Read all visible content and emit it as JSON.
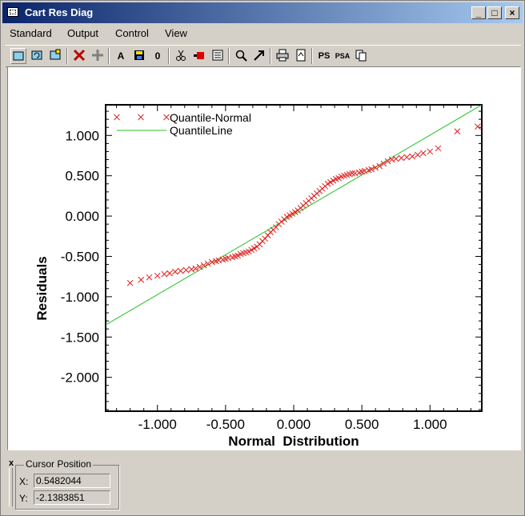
{
  "window": {
    "title": "Cart Res Diag",
    "minimize": "_",
    "maximize": "□",
    "close": "×"
  },
  "menu": [
    "Standard",
    "Output",
    "Control",
    "View"
  ],
  "toolbar": {
    "text_a": "A",
    "zero": "0",
    "ps": "PS",
    "psa": "PSA"
  },
  "chart_data": {
    "type": "scatter",
    "xlabel": "Normal  Distribution",
    "ylabel": "Residuals",
    "xlim": [
      -1.38,
      1.38
    ],
    "ylim": [
      -2.42,
      1.38
    ],
    "xticks": [
      "-1.000",
      "-0.500",
      "0.000",
      "0.500",
      "1.000"
    ],
    "xtick_values": [
      -1,
      -0.5,
      0,
      0.5,
      1
    ],
    "yticks": [
      "1.000",
      "0.500",
      "0.000",
      "-0.500",
      "-1.000",
      "-1.500",
      "-2.000"
    ],
    "ytick_values": [
      1,
      0.5,
      0,
      -0.5,
      -1,
      -1.5,
      -2
    ],
    "legend_position": "top-left",
    "series": [
      {
        "name": "Quantile-Normal",
        "marker": "x",
        "color": "#e02020",
        "points": [
          [
            -1.2,
            -0.83
          ],
          [
            -1.12,
            -0.79
          ],
          [
            -1.06,
            -0.76
          ],
          [
            -1.0,
            -0.74
          ],
          [
            -0.95,
            -0.72
          ],
          [
            -0.91,
            -0.71
          ],
          [
            -0.87,
            -0.69
          ],
          [
            -0.83,
            -0.68
          ],
          [
            -0.79,
            -0.67
          ],
          [
            -0.75,
            -0.66
          ],
          [
            -0.72,
            -0.65
          ],
          [
            -0.69,
            -0.63
          ],
          [
            -0.66,
            -0.61
          ],
          [
            -0.63,
            -0.59
          ],
          [
            -0.6,
            -0.57
          ],
          [
            -0.57,
            -0.56
          ],
          [
            -0.55,
            -0.55
          ],
          [
            -0.52,
            -0.54
          ],
          [
            -0.5,
            -0.53
          ],
          [
            -0.48,
            -0.52
          ],
          [
            -0.45,
            -0.51
          ],
          [
            -0.43,
            -0.5
          ],
          [
            -0.41,
            -0.49
          ],
          [
            -0.39,
            -0.47
          ],
          [
            -0.37,
            -0.46
          ],
          [
            -0.35,
            -0.45
          ],
          [
            -0.33,
            -0.44
          ],
          [
            -0.31,
            -0.42
          ],
          [
            -0.29,
            -0.4
          ],
          [
            -0.27,
            -0.38
          ],
          [
            -0.25,
            -0.35
          ],
          [
            -0.23,
            -0.31
          ],
          [
            -0.21,
            -0.28
          ],
          [
            -0.19,
            -0.24
          ],
          [
            -0.17,
            -0.2
          ],
          [
            -0.15,
            -0.17
          ],
          [
            -0.13,
            -0.14
          ],
          [
            -0.11,
            -0.1
          ],
          [
            -0.09,
            -0.07
          ],
          [
            -0.07,
            -0.04
          ],
          [
            -0.05,
            -0.01
          ],
          [
            -0.03,
            0.01
          ],
          [
            -0.01,
            0.03
          ],
          [
            0.01,
            0.05
          ],
          [
            0.03,
            0.07
          ],
          [
            0.05,
            0.1
          ],
          [
            0.07,
            0.13
          ],
          [
            0.09,
            0.16
          ],
          [
            0.11,
            0.19
          ],
          [
            0.13,
            0.22
          ],
          [
            0.15,
            0.25
          ],
          [
            0.17,
            0.28
          ],
          [
            0.19,
            0.31
          ],
          [
            0.21,
            0.34
          ],
          [
            0.23,
            0.37
          ],
          [
            0.25,
            0.4
          ],
          [
            0.27,
            0.42
          ],
          [
            0.29,
            0.44
          ],
          [
            0.31,
            0.46
          ],
          [
            0.33,
            0.47
          ],
          [
            0.35,
            0.49
          ],
          [
            0.37,
            0.5
          ],
          [
            0.39,
            0.51
          ],
          [
            0.41,
            0.52
          ],
          [
            0.43,
            0.53
          ],
          [
            0.45,
            0.53
          ],
          [
            0.48,
            0.54
          ],
          [
            0.5,
            0.55
          ],
          [
            0.52,
            0.56
          ],
          [
            0.55,
            0.57
          ],
          [
            0.57,
            0.58
          ],
          [
            0.6,
            0.6
          ],
          [
            0.63,
            0.62
          ],
          [
            0.66,
            0.65
          ],
          [
            0.69,
            0.68
          ],
          [
            0.72,
            0.7
          ],
          [
            0.75,
            0.71
          ],
          [
            0.79,
            0.72
          ],
          [
            0.83,
            0.73
          ],
          [
            0.87,
            0.74
          ],
          [
            0.91,
            0.76
          ],
          [
            0.95,
            0.78
          ],
          [
            1.0,
            0.8
          ],
          [
            1.06,
            0.84
          ],
          [
            1.2,
            1.05
          ],
          [
            1.35,
            1.11
          ]
        ]
      },
      {
        "name": "QuantileLine",
        "type": "line",
        "color": "#22c022",
        "points": [
          [
            -1.38,
            -1.35
          ],
          [
            1.38,
            1.38
          ]
        ]
      }
    ]
  },
  "cursor": {
    "title": "Cursor Position",
    "x_label": "X:",
    "y_label": "Y:",
    "x_value": "0.5482044",
    "y_value": "-2.1383851",
    "close": "x"
  }
}
